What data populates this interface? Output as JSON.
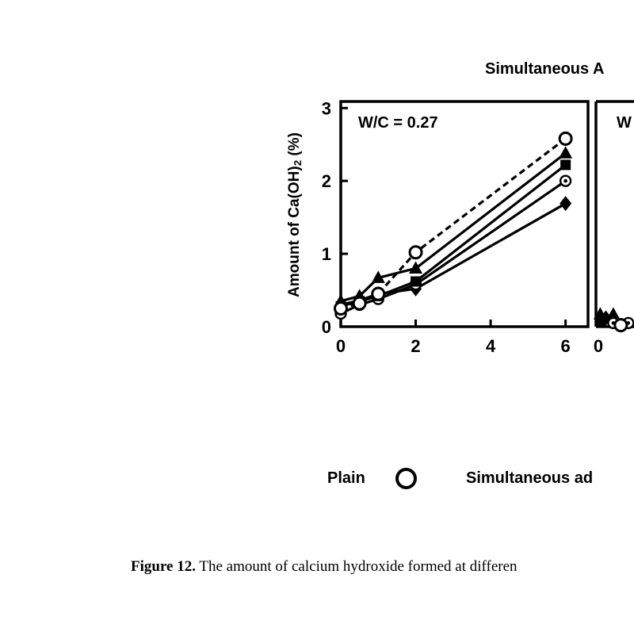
{
  "figure": {
    "panel_title": "Simultaneous A",
    "caption_label": "Figure 12.",
    "caption_text": " The amount of calcium hydroxide formed at differen"
  },
  "legend": {
    "plain_label": "Plain",
    "plain_marker": "open-circle",
    "simultaneous_label": "Simultaneous ad"
  },
  "chart_data": {
    "type": "line",
    "title": "Simultaneous A",
    "ylabel_prefix": "Amount of Ca(OH)",
    "ylabel_sub": "2",
    "ylabel_suffix": " (%)",
    "xlim": [
      0,
      6.6
    ],
    "ylim": [
      0,
      3.09
    ],
    "grid": false,
    "line_color": "#000000",
    "background": "#ffffff",
    "panels": [
      {
        "label": "W/C = 0.27",
        "x_ticks": [
          0,
          2,
          4,
          6
        ],
        "y_ticks": [
          0,
          1,
          2,
          3
        ],
        "x": [
          0,
          0.5,
          1,
          2,
          6
        ],
        "series": [
          {
            "name": "plain",
            "marker": "open-circle",
            "line": "dashed",
            "values": [
              0.25,
              0.32,
              0.45,
              1.02,
              2.58
            ]
          },
          {
            "name": "triangle-series",
            "marker": "triangle",
            "line": "solid",
            "values": [
              0.35,
              0.42,
              0.67,
              0.8,
              2.38
            ]
          },
          {
            "name": "square-series",
            "marker": "square",
            "line": "solid",
            "values": [
              0.28,
              0.35,
              0.42,
              0.62,
              2.22
            ]
          },
          {
            "name": "dot-circle-series",
            "marker": "dot-circle",
            "line": "solid",
            "values": [
              0.18,
              0.3,
              0.38,
              0.58,
              2.0
            ]
          },
          {
            "name": "diamond-series",
            "marker": "diamond",
            "line": "solid",
            "values": [
              0.3,
              0.36,
              0.45,
              0.52,
              1.69
            ]
          }
        ]
      },
      {
        "label": "W",
        "partial": true,
        "x_ticks": [
          0
        ],
        "markers": [
          {
            "marker": "triangle",
            "x": 0.05,
            "y": 0.17
          },
          {
            "marker": "triangle",
            "x": 0.4,
            "y": 0.17
          },
          {
            "marker": "square",
            "x": 0.08,
            "y": 0.07
          },
          {
            "marker": "diamond",
            "x": 0.2,
            "y": 0.12
          },
          {
            "marker": "dot-circle",
            "x": 0.4,
            "y": 0.05
          },
          {
            "marker": "dot-circle",
            "x": 0.8,
            "y": 0.05
          },
          {
            "marker": "open-circle",
            "x": 0.6,
            "y": 0.02
          }
        ]
      }
    ]
  }
}
